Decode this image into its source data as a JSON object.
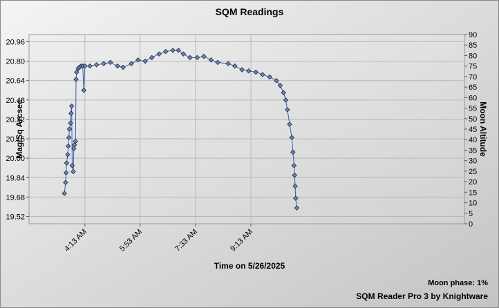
{
  "chart_data": {
    "type": "line",
    "title": "SQM Readings",
    "x_label": "Time on 5/26/2025",
    "y_label": "Mag/Sq Arcsec",
    "y2_label": "Moon Altitude",
    "x": [
      216,
      218,
      219,
      220,
      222,
      223,
      224,
      225,
      227,
      228,
      229,
      230,
      232,
      233,
      234,
      236,
      237,
      238,
      241,
      243,
      246,
      249,
      251,
      253,
      262,
      274,
      287,
      299,
      312,
      322,
      337,
      349,
      362,
      374,
      387,
      399,
      412,
      422,
      431,
      443,
      456,
      468,
      481,
      493,
      512,
      524,
      537,
      549,
      562,
      574,
      587,
      599,
      606,
      612,
      616,
      619,
      623,
      627,
      629,
      631,
      632,
      633,
      634,
      636
    ],
    "series": [
      {
        "name": "Mag/Sq Arcsec",
        "color": "#3a5bb0",
        "values": [
          19.71,
          19.8,
          19.88,
          19.96,
          20.03,
          20.1,
          20.17,
          20.24,
          20.29,
          20.37,
          20.43,
          19.94,
          19.89,
          20.08,
          20.11,
          20.14,
          20.65,
          20.71,
          20.74,
          20.75,
          20.76,
          20.76,
          20.56,
          20.76,
          20.76,
          20.77,
          20.78,
          20.79,
          20.76,
          20.75,
          20.78,
          20.81,
          20.8,
          20.83,
          20.86,
          20.88,
          20.89,
          20.89,
          20.86,
          20.83,
          20.83,
          20.84,
          20.81,
          20.79,
          20.78,
          20.76,
          20.73,
          20.72,
          20.71,
          20.69,
          20.67,
          20.64,
          20.6,
          20.54,
          20.48,
          20.4,
          20.28,
          20.17,
          20.05,
          19.94,
          19.86,
          19.77,
          19.67,
          19.59
        ]
      }
    ],
    "xlim": [
      152,
      939
    ],
    "xticks": [
      {
        "value": 253,
        "label": "4:13 AM"
      },
      {
        "value": 353,
        "label": "5:53 AM"
      },
      {
        "value": 453,
        "label": "7:33 AM"
      },
      {
        "value": 553,
        "label": "9:13 AM"
      }
    ],
    "ylim": [
      19.46,
      21.02
    ],
    "yticks": [
      19.52,
      19.68,
      19.84,
      {
        "value": 20,
        "label": "20.00"
      },
      20.16,
      20.32,
      20.48,
      20.64,
      {
        "value": 20.8,
        "label": "20.80"
      },
      20.96
    ],
    "y2lim": [
      0,
      90
    ],
    "y2ticks": [
      0,
      5,
      10,
      15,
      20,
      25,
      30,
      35,
      40,
      45,
      50,
      55,
      60,
      65,
      70,
      75,
      80,
      85,
      90
    ],
    "grid": true,
    "footer_note": "Moon phase: 1%",
    "credit": "SQM Reader Pro 3 by Knightware"
  }
}
